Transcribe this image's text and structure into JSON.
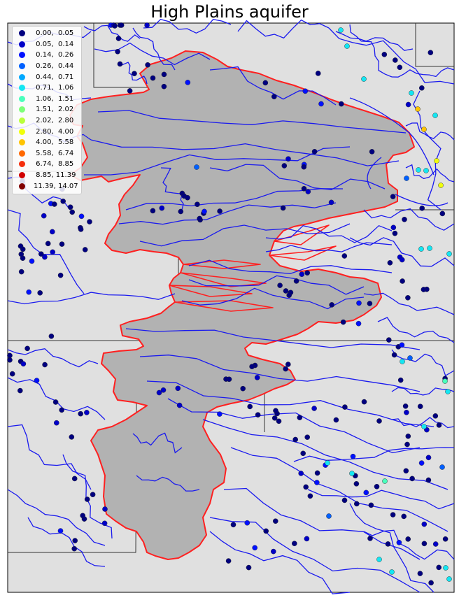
{
  "title": "High Plains aquifer",
  "colors": {
    "land": "#e0e0e0",
    "aquifer_fill": "#b2b2b2",
    "aquifer_outline": "#ff2020",
    "rivers": "#1a1aee",
    "borders": "#333333"
  },
  "legend": [
    {
      "label": " 0.00,  0.05",
      "color": "#00007f"
    },
    {
      "label": " 0.05,  0.14",
      "color": "#0000c8"
    },
    {
      "label": " 0.14,  0.26",
      "color": "#0010ff"
    },
    {
      "label": " 0.26,  0.44",
      "color": "#0060ff"
    },
    {
      "label": " 0.44,  0.71",
      "color": "#00a8ff"
    },
    {
      "label": " 0.71,  1.06",
      "color": "#14e6f2"
    },
    {
      "label": " 1.06,  1.51",
      "color": "#4affbc"
    },
    {
      "label": " 1.51,  2.02",
      "color": "#7cff79"
    },
    {
      "label": " 2.02,  2.80",
      "color": "#b9ff3c"
    },
    {
      "label": " 2.80,  4.00",
      "color": "#f0ff0a"
    },
    {
      "label": " 4.00,  5.58",
      "color": "#ffc400"
    },
    {
      "label": " 5.58,  6.74",
      "color": "#ff6800"
    },
    {
      "label": " 6.74,  8.85",
      "color": "#f52e0c"
    },
    {
      "label": " 8.85, 11.39",
      "color": "#d00000"
    },
    {
      "label": "11.39, 14.07",
      "color": "#800000"
    }
  ]
}
